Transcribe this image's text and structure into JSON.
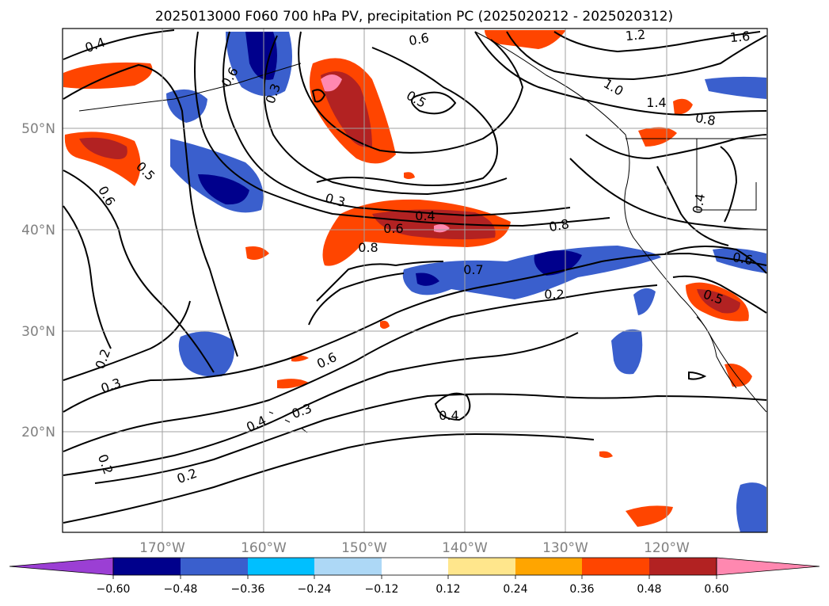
{
  "title": "2025013000 F060 700 hPa PV, precipitation PC (2025020212 - 2025020312)",
  "map": {
    "lat_labels": [
      "50°N",
      "40°N",
      "30°N",
      "20°N"
    ],
    "lon_labels": [
      "170°W",
      "160°W",
      "150°W",
      "140°W",
      "130°W",
      "120°W"
    ],
    "contour_labels": [
      "0.4",
      "0.6",
      "1.2",
      "1.6",
      "0.6",
      "1.0",
      "1.4",
      "0.8",
      "0.5",
      "0.3",
      "0.5",
      "0.6",
      "0.3",
      "0.4",
      "0.6",
      "0.8",
      "0.8",
      "0.7",
      "0.2",
      "0.5",
      "0.6",
      "0.4",
      "0.2",
      "0.3",
      "0.6",
      "0.3",
      "0.4",
      "0.4",
      "0.2",
      "0.2"
    ]
  },
  "colorbar": {
    "labels": [
      "−0.60",
      "−0.48",
      "−0.36",
      "−0.24",
      "−0.12",
      "0.12",
      "0.24",
      "0.36",
      "0.48",
      "0.60"
    ],
    "colors": [
      "#9b3fd4",
      "#00008c",
      "#3a5fcd",
      "#00bfff",
      "#add8f6",
      "#ffffff",
      "#ffe68c",
      "#ffa500",
      "#ff4500",
      "#b22222",
      "#ff88b0"
    ]
  }
}
